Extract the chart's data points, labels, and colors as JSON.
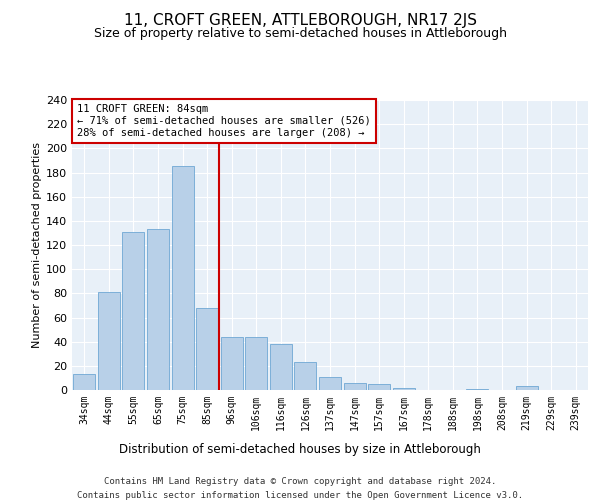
{
  "title": "11, CROFT GREEN, ATTLEBOROUGH, NR17 2JS",
  "subtitle": "Size of property relative to semi-detached houses in Attleborough",
  "xlabel": "Distribution of semi-detached houses by size in Attleborough",
  "ylabel": "Number of semi-detached properties",
  "categories": [
    "34sqm",
    "44sqm",
    "55sqm",
    "65sqm",
    "75sqm",
    "85sqm",
    "96sqm",
    "106sqm",
    "116sqm",
    "126sqm",
    "137sqm",
    "147sqm",
    "157sqm",
    "167sqm",
    "178sqm",
    "188sqm",
    "198sqm",
    "208sqm",
    "219sqm",
    "229sqm",
    "239sqm"
  ],
  "values": [
    13,
    81,
    131,
    133,
    185,
    68,
    44,
    44,
    38,
    23,
    11,
    6,
    5,
    2,
    0,
    0,
    1,
    0,
    3,
    0,
    0
  ],
  "bar_color": "#b8d0e8",
  "bar_edge_color": "#6fa8d4",
  "background_color": "#e8f0f8",
  "grid_color": "#ffffff",
  "vline_x_index": 5,
  "vline_color": "#cc0000",
  "annotation_text": "11 CROFT GREEN: 84sqm\n← 71% of semi-detached houses are smaller (526)\n28% of semi-detached houses are larger (208) →",
  "annotation_box_color": "#ffffff",
  "annotation_box_edge": "#cc0000",
  "ylim": [
    0,
    240
  ],
  "yticks": [
    0,
    20,
    40,
    60,
    80,
    100,
    120,
    140,
    160,
    180,
    200,
    220,
    240
  ],
  "footer_line1": "Contains HM Land Registry data © Crown copyright and database right 2024.",
  "footer_line2": "Contains public sector information licensed under the Open Government Licence v3.0.",
  "title_fontsize": 11,
  "subtitle_fontsize": 9,
  "xlabel_fontsize": 8.5,
  "ylabel_fontsize": 8,
  "tick_fontsize": 7,
  "footer_fontsize": 6.5
}
